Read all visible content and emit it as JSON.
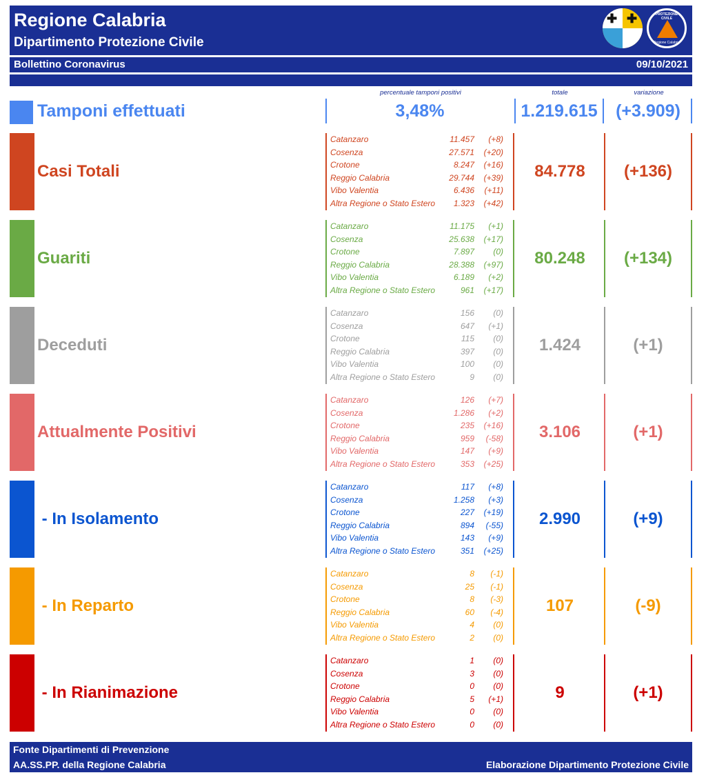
{
  "header": {
    "title": "Regione Calabria",
    "subtitle": "Dipartimento Protezione Civile",
    "bulletin": "Bollettino Coronavirus",
    "date": "09/10/2021",
    "logo2_top_text": "PROTEZIONE CIVILE",
    "logo2_bottom_text": "Regione Calabria"
  },
  "column_headers": {
    "perc": "percentuale tamponi positivi",
    "total": "totale",
    "variation": "variazione"
  },
  "tamponi": {
    "title": "Tamponi effettuati",
    "percent": "3,48%",
    "total": "1.219.615",
    "variation": "(+3.909)",
    "color": "#4a86f0"
  },
  "sections": [
    {
      "title": "Casi Totali",
      "color": "#cf4520",
      "total": "84.778",
      "variation": "(+136)",
      "rows": [
        {
          "name": "Catanzaro",
          "value": "11.457",
          "var": "(+8)"
        },
        {
          "name": "Cosenza",
          "value": "27.571",
          "var": "(+20)"
        },
        {
          "name": "Crotone",
          "value": "8.247",
          "var": "(+16)"
        },
        {
          "name": "Reggio Calabria",
          "value": "29.744",
          "var": "(+39)"
        },
        {
          "name": "Vibo Valentia",
          "value": "6.436",
          "var": "(+11)"
        },
        {
          "name": "Altra Regione o Stato Estero",
          "value": "1.323",
          "var": "(+42)"
        }
      ]
    },
    {
      "title": "Guariti",
      "color": "#6aaa45",
      "total": "80.248",
      "variation": "(+134)",
      "rows": [
        {
          "name": "Catanzaro",
          "value": "11.175",
          "var": "(+1)"
        },
        {
          "name": "Cosenza",
          "value": "25.638",
          "var": "(+17)"
        },
        {
          "name": "Crotone",
          "value": "7.897",
          "var": "(0)"
        },
        {
          "name": "Reggio Calabria",
          "value": "28.388",
          "var": "(+97)"
        },
        {
          "name": "Vibo Valentia",
          "value": "6.189",
          "var": "(+2)"
        },
        {
          "name": "Altra Regione o Stato Estero",
          "value": "961",
          "var": "(+17)"
        }
      ]
    },
    {
      "title": "Deceduti",
      "color": "#9e9e9e",
      "total": "1.424",
      "variation": "(+1)",
      "rows": [
        {
          "name": "Catanzaro",
          "value": "156",
          "var": "(0)"
        },
        {
          "name": "Cosenza",
          "value": "647",
          "var": "(+1)"
        },
        {
          "name": "Crotone",
          "value": "115",
          "var": "(0)"
        },
        {
          "name": "Reggio Calabria",
          "value": "397",
          "var": "(0)"
        },
        {
          "name": "Vibo Valentia",
          "value": "100",
          "var": "(0)"
        },
        {
          "name": "Altra Regione o Stato Estero",
          "value": "9",
          "var": "(0)"
        }
      ]
    },
    {
      "title": "Attualmente Positivi",
      "color": "#e26868",
      "total": "3.106",
      "variation": "(+1)",
      "rows": [
        {
          "name": "Catanzaro",
          "value": "126",
          "var": "(+7)"
        },
        {
          "name": "Cosenza",
          "value": "1.286",
          "var": "(+2)"
        },
        {
          "name": "Crotone",
          "value": "235",
          "var": "(+16)"
        },
        {
          "name": "Reggio Calabria",
          "value": "959",
          "var": "(-58)"
        },
        {
          "name": "Vibo Valentia",
          "value": "147",
          "var": "(+9)"
        },
        {
          "name": "Altra Regione o Stato Estero",
          "value": "353",
          "var": "(+25)"
        }
      ]
    },
    {
      "title": " - In Isolamento",
      "color": "#0b55d0",
      "total": "2.990",
      "variation": "(+9)",
      "rows": [
        {
          "name": "Catanzaro",
          "value": "117",
          "var": "(+8)"
        },
        {
          "name": "Cosenza",
          "value": "1.258",
          "var": "(+3)"
        },
        {
          "name": "Crotone",
          "value": "227",
          "var": "(+19)"
        },
        {
          "name": "Reggio Calabria",
          "value": "894",
          "var": "(-55)"
        },
        {
          "name": "Vibo Valentia",
          "value": "143",
          "var": "(+9)"
        },
        {
          "name": "Altra Regione o Stato Estero",
          "value": "351",
          "var": "(+25)"
        }
      ]
    },
    {
      "title": " - In Reparto",
      "color": "#f59a00",
      "total": "107",
      "variation": "(-9)",
      "rows": [
        {
          "name": "Catanzaro",
          "value": "8",
          "var": "(-1)"
        },
        {
          "name": "Cosenza",
          "value": "25",
          "var": "(-1)"
        },
        {
          "name": "Crotone",
          "value": "8",
          "var": "(-3)"
        },
        {
          "name": "Reggio Calabria",
          "value": "60",
          "var": "(-4)"
        },
        {
          "name": "Vibo Valentia",
          "value": "4",
          "var": "(0)"
        },
        {
          "name": "Altra Regione o Stato Estero",
          "value": "2",
          "var": "(0)"
        }
      ]
    },
    {
      "title": " - In Rianimazione",
      "color": "#cc0000",
      "total": "9",
      "variation": "(+1)",
      "rows": [
        {
          "name": "Catanzaro",
          "value": "1",
          "var": "(0)"
        },
        {
          "name": "Cosenza",
          "value": "3",
          "var": "(0)"
        },
        {
          "name": "Crotone",
          "value": "0",
          "var": "(0)"
        },
        {
          "name": "Reggio Calabria",
          "value": "5",
          "var": "(+1)"
        },
        {
          "name": "Vibo Valentia",
          "value": "0",
          "var": "(0)"
        },
        {
          "name": "Altra Regione o Stato Estero",
          "value": "0",
          "var": "(0)"
        }
      ]
    }
  ],
  "footer": {
    "line1": "Fonte Dipartimenti di Prevenzione",
    "line2": "AA.SS.PP.  della Regione Calabria",
    "credit": "Elaborazione Dipartimento Protezione Civile"
  }
}
